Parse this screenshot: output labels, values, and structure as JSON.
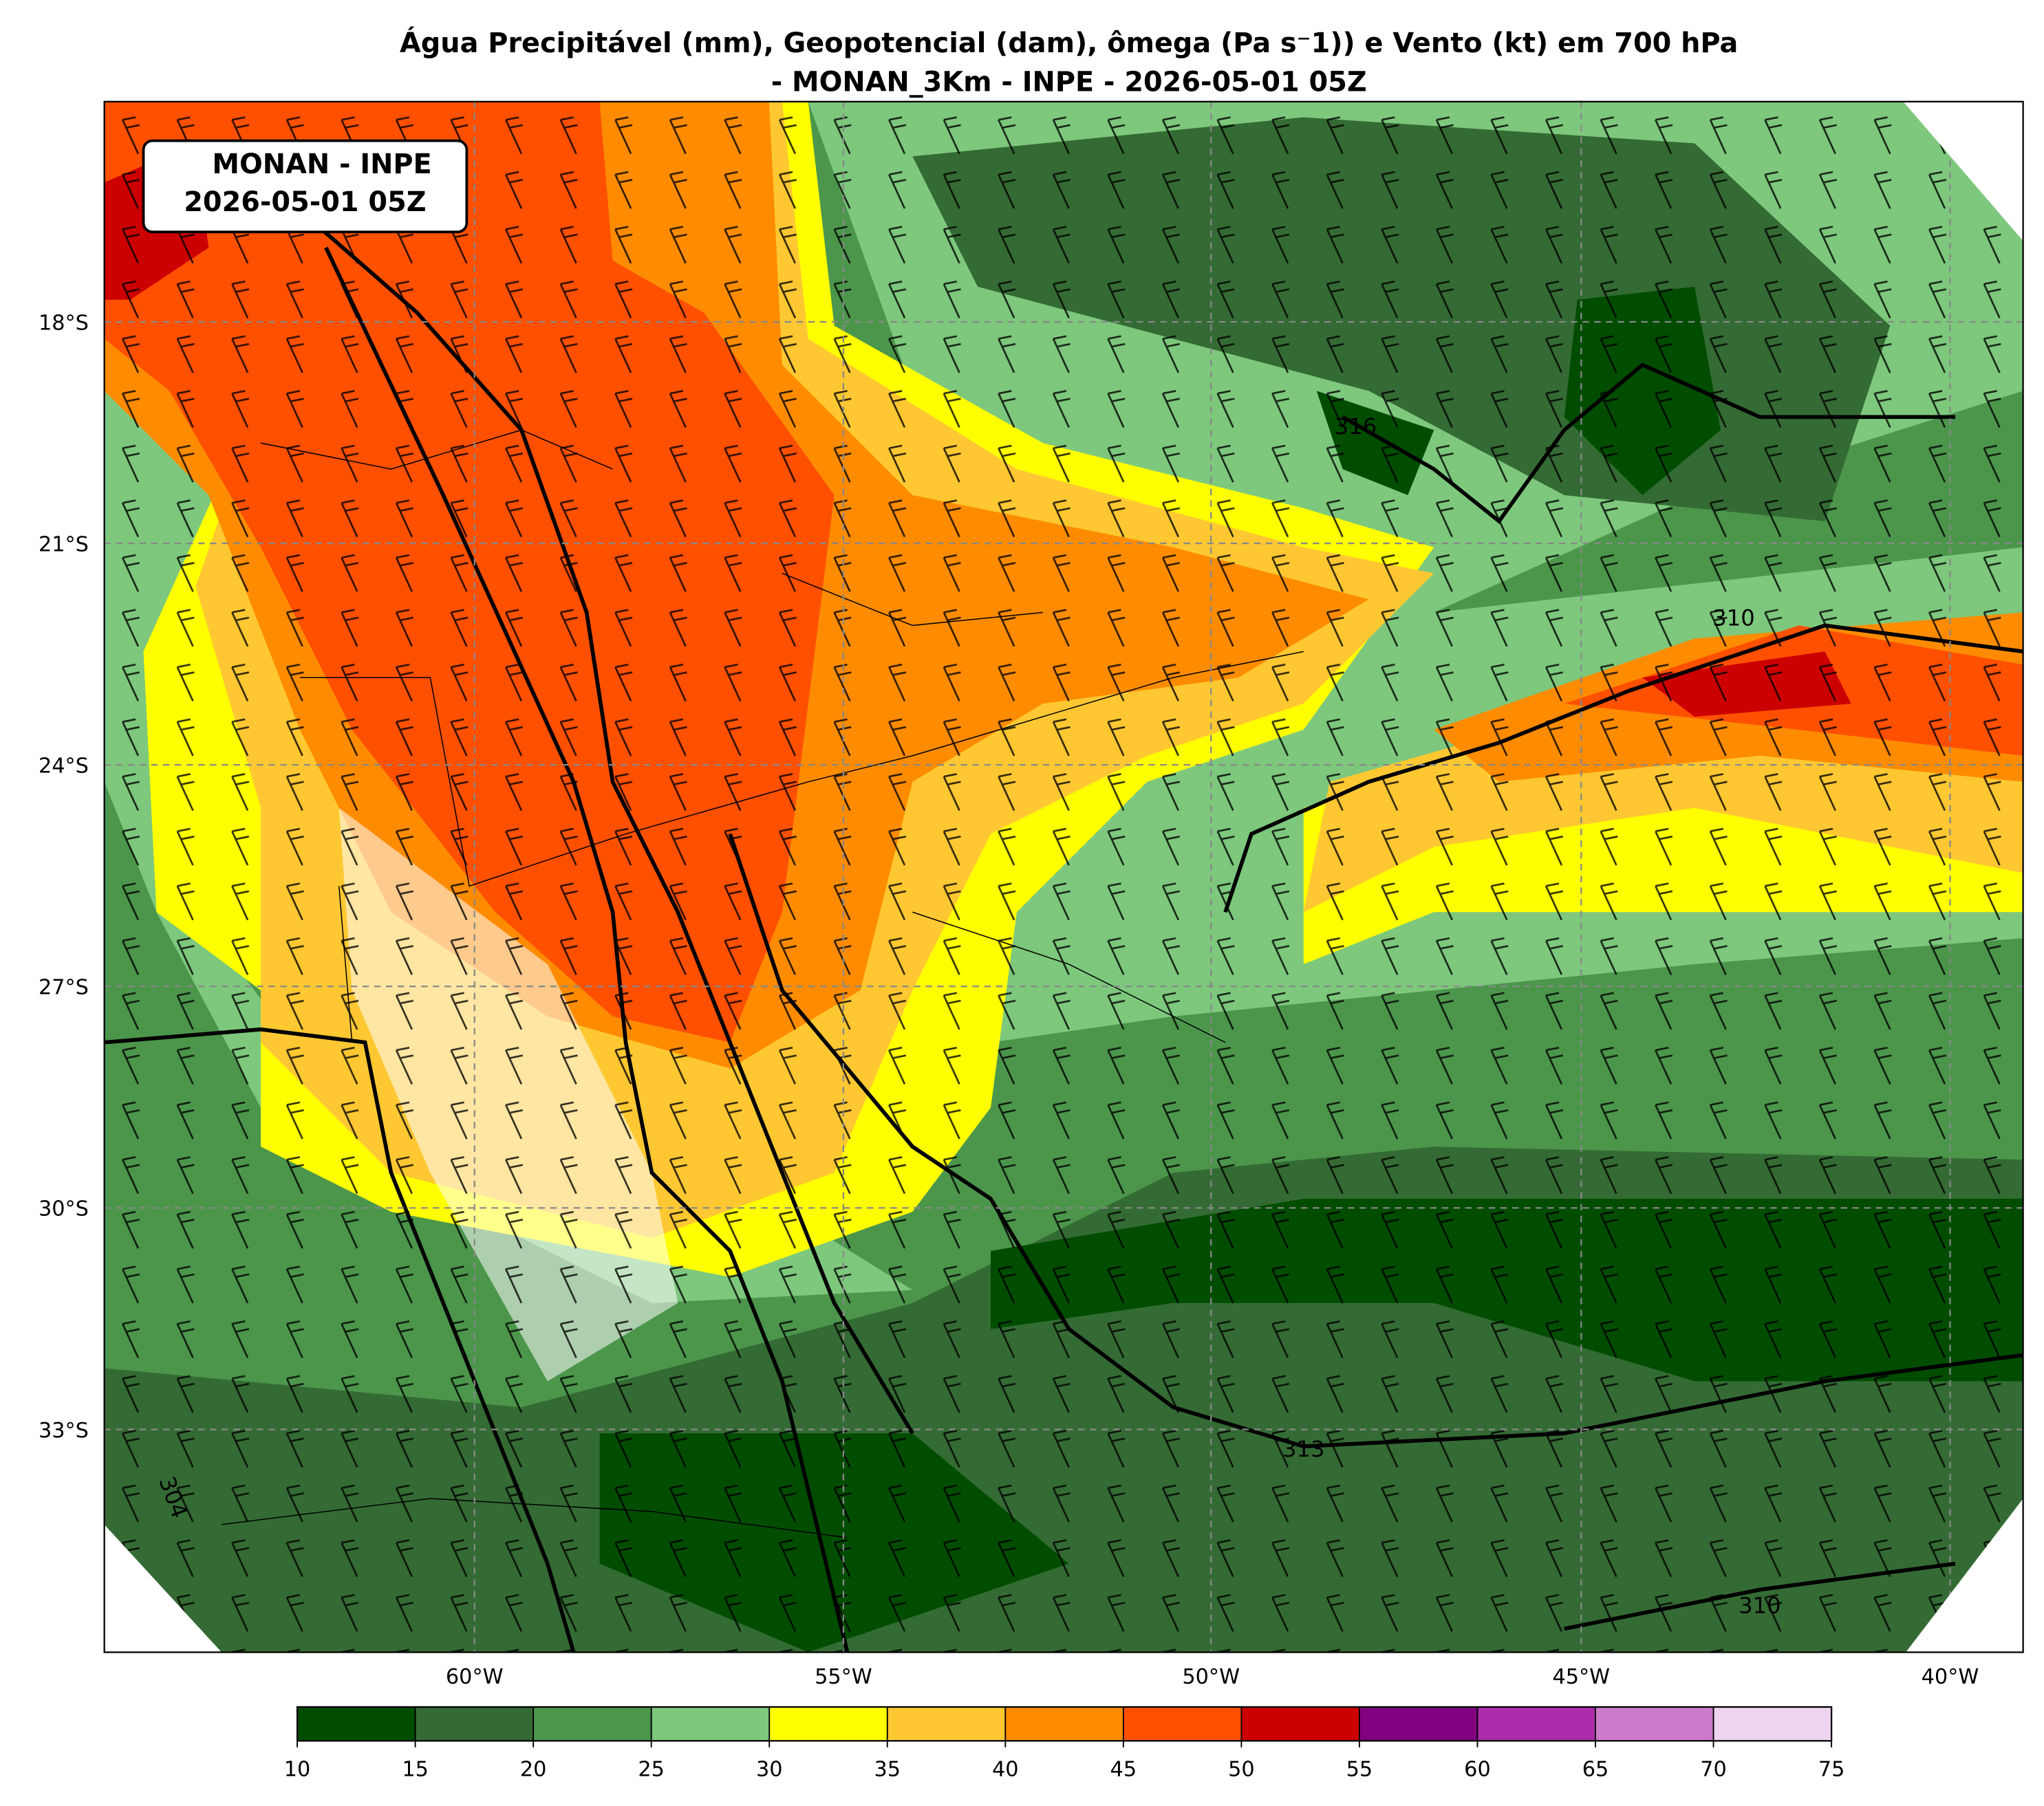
{
  "title": "Água Precipitável (mm), Geopotencial (dam), ômega (Pa s⁻1)) e Vento (kt) em 700 hPa",
  "subtitle": "- MONAN_3Km - INPE - 2026-05-01 05Z",
  "info_box": [
    "MONAN - INPE",
    "2026-05-01 05Z"
  ],
  "latitude_labels": [
    "18°S",
    "21°S",
    "24°S",
    "27°S",
    "30°S",
    "33°S"
  ],
  "longitude_labels": [
    "60°W",
    "55°W",
    "50°W",
    "45°W",
    "40°W"
  ],
  "contour_labels": [
    "316",
    "310",
    "313",
    "310",
    "304"
  ],
  "colorbar": {
    "ticks": [
      10,
      15,
      20,
      25,
      30,
      35,
      40,
      45,
      50,
      55,
      60,
      65,
      70,
      75
    ],
    "colors": [
      "#004d00",
      "#346b34",
      "#4c964c",
      "#7dc87d",
      "#ffff00",
      "#ffc832",
      "#ff8c00",
      "#ff5000",
      "#cc0000",
      "#800080",
      "#ac2cac",
      "#cc7acc",
      "#eed4ee"
    ]
  }
}
